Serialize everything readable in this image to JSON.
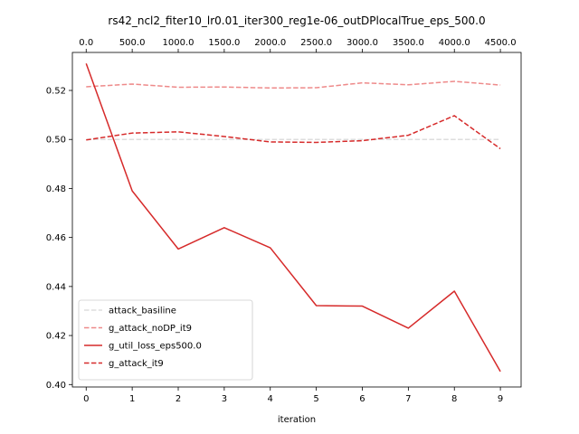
{
  "chart_data": {
    "type": "line",
    "title": "rs42_ncl2_fiter10_lr0.01_iter300_reg1e-06_outDPlocalTrue_eps_500.0",
    "xlabel": "iteration",
    "ylabel": "",
    "x": [
      0,
      1,
      2,
      3,
      4,
      5,
      6,
      7,
      8,
      9
    ],
    "xticks": [
      "0",
      "1",
      "2",
      "3",
      "4",
      "5",
      "6",
      "7",
      "8",
      "9"
    ],
    "xlim": [
      -0.3,
      9.45
    ],
    "top_xticks": [
      "0.0",
      "500.0",
      "1000.0",
      "1500.0",
      "2000.0",
      "2500.0",
      "3000.0",
      "3500.0",
      "4000.0",
      "4500.0"
    ],
    "ylim": [
      0.399,
      0.5355
    ],
    "yticks": [
      0.4,
      0.42,
      0.44,
      0.46,
      0.48,
      0.5,
      0.52
    ],
    "ytick_labels": [
      "0.40",
      "0.42",
      "0.44",
      "0.46",
      "0.48",
      "0.50",
      "0.52"
    ],
    "grid": false,
    "legend_placement": "lower-left",
    "series": [
      {
        "name": "attack_basiline",
        "color": "#dddddd",
        "dash": "dashed",
        "values": [
          0.5,
          0.5,
          0.5,
          0.5,
          0.5,
          0.5,
          0.5,
          0.5,
          0.5,
          0.5
        ]
      },
      {
        "name": "g_attack_noDP_it9",
        "color": "#ee8a8a",
        "dash": "dashed",
        "values": [
          0.5215,
          0.5226,
          0.5213,
          0.5214,
          0.521,
          0.5211,
          0.5231,
          0.5223,
          0.5237,
          0.5222
        ]
      },
      {
        "name": "g_util_loss_eps500.0",
        "color": "#d62a2a",
        "dash": "solid",
        "values": [
          0.531,
          0.479,
          0.4553,
          0.464,
          0.4558,
          0.4322,
          0.432,
          0.423,
          0.4381,
          0.4053
        ]
      },
      {
        "name": "g_attack_it9",
        "color": "#d62a2a",
        "dash": "dashed",
        "values": [
          0.4998,
          0.5026,
          0.5031,
          0.5012,
          0.499,
          0.4988,
          0.4995,
          0.5017,
          0.5097,
          0.4962
        ]
      }
    ]
  }
}
